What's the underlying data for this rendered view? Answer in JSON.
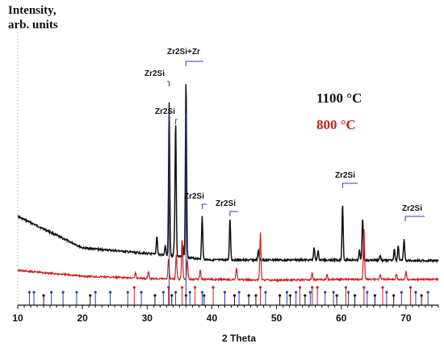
{
  "chart_data": {
    "type": "line",
    "ylabel_line1": "Intensity,",
    "ylabel_line2": "arb. units",
    "xlabel": "2 Theta",
    "xlim": [
      10,
      75
    ],
    "x_ticks": [
      10,
      20,
      30,
      40,
      50,
      60,
      70
    ],
    "grid": false,
    "legend_position": "top-right",
    "series": [
      {
        "name": "1100 °C",
        "color": "#111111",
        "baseline": [
          [
            10,
            268
          ],
          [
            20,
            307
          ],
          [
            30,
            314
          ],
          [
            40,
            322
          ],
          [
            50,
            322
          ],
          [
            60,
            322
          ],
          [
            75,
            323
          ]
        ],
        "peaks": [
          [
            31.5,
            292
          ],
          [
            32.8,
            304
          ],
          [
            33.4,
            127
          ],
          [
            34.2,
            304
          ],
          [
            34.4,
            152
          ],
          [
            35.5,
            304
          ],
          [
            36.0,
            100
          ],
          [
            38.5,
            268
          ],
          [
            42.8,
            270
          ],
          [
            47.2,
            310
          ],
          [
            55.8,
            306
          ],
          [
            56.4,
            310
          ],
          [
            60.2,
            253
          ],
          [
            62.8,
            310
          ],
          [
            63.3,
            270
          ],
          [
            66.0,
            316
          ],
          [
            68.2,
            308
          ],
          [
            68.8,
            304
          ],
          [
            69.7,
            296
          ]
        ]
      },
      {
        "name": "800 °C",
        "color": "#cc1f1f",
        "baseline": [
          [
            10,
            335
          ],
          [
            20,
            342
          ],
          [
            30,
            345
          ],
          [
            40,
            346
          ],
          [
            50,
            347
          ],
          [
            60,
            346
          ],
          [
            75,
            346
          ]
        ],
        "peaks": [
          [
            28.2,
            338
          ],
          [
            30.2,
            336
          ],
          [
            33.3,
            320
          ],
          [
            34.5,
            316
          ],
          [
            35.4,
            296
          ],
          [
            36.2,
            322
          ],
          [
            38.2,
            334
          ],
          [
            43.8,
            332
          ],
          [
            47.5,
            288
          ],
          [
            55.5,
            338
          ],
          [
            57.8,
            340
          ],
          [
            63.5,
            282
          ],
          [
            66.0,
            340
          ],
          [
            68.5,
            340
          ],
          [
            70.0,
            336
          ]
        ]
      }
    ],
    "annotations": [
      {
        "text": "Zr2Si+Zr",
        "x": 36.0
      },
      {
        "text": "Zr2Si",
        "x": 33.4
      },
      {
        "text": "Zr2Si",
        "x": 34.4
      },
      {
        "text": "Zr2Si",
        "x": 38.5
      },
      {
        "text": "Zr2Si",
        "x": 42.8
      },
      {
        "text": "Zr2Si",
        "x": 60.2
      },
      {
        "text": "Zr2Si",
        "x": 69.9
      }
    ],
    "reference_markers": {
      "red": [
        28.0,
        33.3,
        35.4,
        37.4,
        40.2,
        47.5,
        53.6,
        55.5,
        56.3,
        60.7,
        63.5,
        66.4,
        70.7
      ],
      "blue": [
        11.8,
        12.5,
        15.2,
        17.0,
        19.1,
        22.0,
        24.3,
        27.0,
        29.1,
        32.5,
        34.4,
        36.6,
        38.5,
        42.0,
        44.2,
        48.3,
        51.6,
        53.0,
        55.2,
        57.5,
        58.8,
        61.1,
        64.0,
        67.0,
        69.3,
        71.5,
        73.4
      ],
      "black": [
        14.0,
        21.2,
        31.2,
        33.8,
        36.0,
        38.8,
        43.5,
        45.7,
        46.8,
        50.5,
        52.1,
        54.4,
        59.3,
        62.1,
        65.2,
        68.1,
        72.4
      ]
    }
  }
}
